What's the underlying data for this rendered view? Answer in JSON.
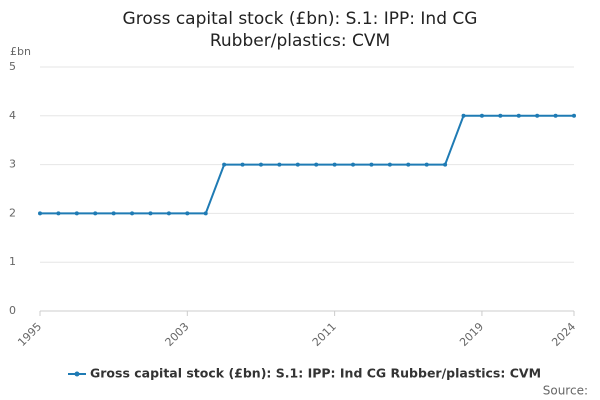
{
  "chart_data": {
    "type": "line",
    "title": "Gross capital stock (£bn): S.1: IPP: Ind CG Rubber/plastics: CVM",
    "y_label": "£bn",
    "source": "Source:",
    "x": [
      1995,
      1996,
      1997,
      1998,
      1999,
      2000,
      2001,
      2002,
      2003,
      2004,
      2005,
      2006,
      2007,
      2008,
      2009,
      2010,
      2011,
      2012,
      2013,
      2014,
      2015,
      2016,
      2017,
      2018,
      2019,
      2020,
      2021,
      2022,
      2023,
      2024
    ],
    "series": [
      {
        "name": "Gross capital stock (£bn): S.1: IPP: Ind CG Rubber/plastics: CVM",
        "color": "#1f7bb4",
        "values": [
          2,
          2,
          2,
          2,
          2,
          2,
          2,
          2,
          2,
          2,
          3,
          3,
          3,
          3,
          3,
          3,
          3,
          3,
          3,
          3,
          3,
          3,
          3,
          4,
          4,
          4,
          4,
          4,
          4,
          4
        ]
      }
    ],
    "xlim": [
      1995,
      2024
    ],
    "xticks": [
      1995,
      2003,
      2011,
      2019,
      2024
    ],
    "ylim": [
      0,
      5
    ],
    "yticks": [
      0,
      1,
      2,
      3,
      4,
      5
    ],
    "grid": true
  }
}
